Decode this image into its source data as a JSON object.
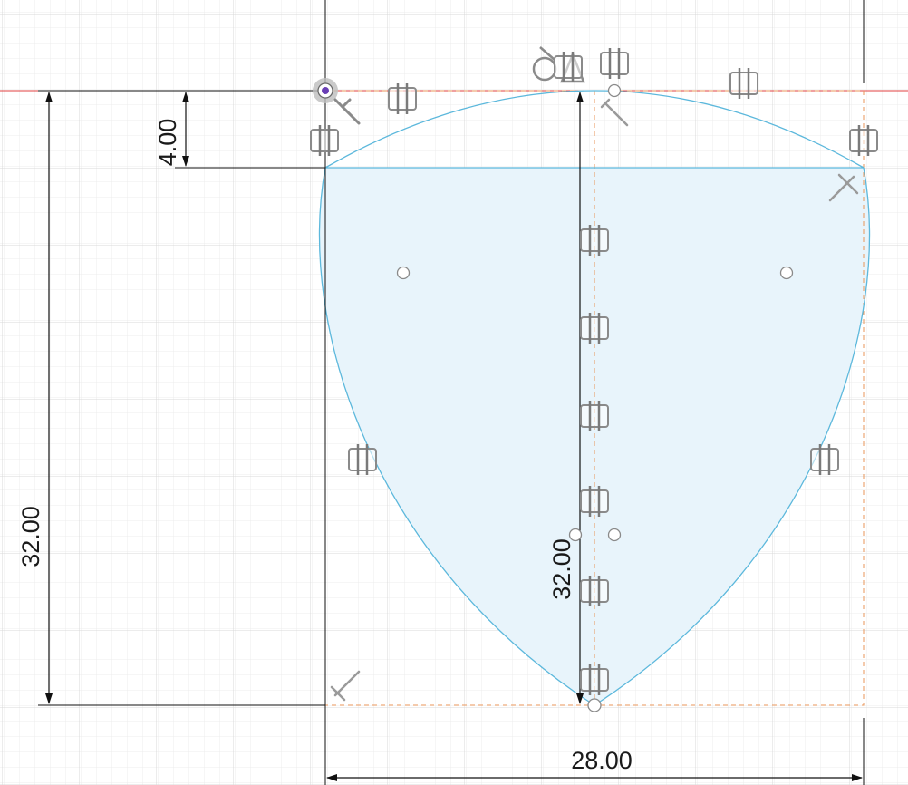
{
  "sketch": {
    "dimensions": {
      "top_offset": "4.00",
      "left_height": "32.00",
      "center_height": "32.00",
      "bottom_width": "28.00"
    },
    "constraint_glyph": "⫽",
    "colors": {
      "profile_stroke": "#5cb8dc",
      "profile_fill": "#e8f4fb",
      "construction_line": "#e8965a",
      "axis_red": "#e04040",
      "axis_green": "#6fbf4a",
      "grid_minor": "#eeeeee",
      "grid_major": "#d6d6d6",
      "dimension_line": "#111111",
      "constraint_icon": "#7a7a7a",
      "origin_point": "#6a3fb5"
    }
  }
}
